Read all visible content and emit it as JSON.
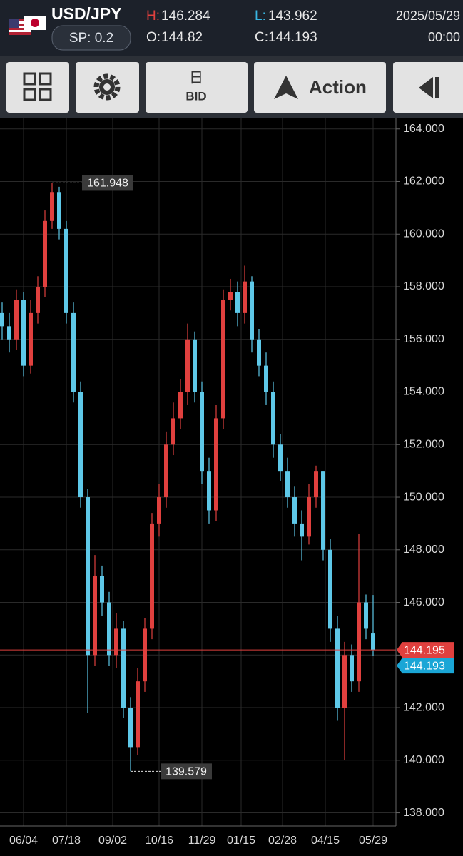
{
  "header": {
    "pair": "USD/JPY",
    "spread": "SP: 0.2",
    "high_key": "H:",
    "open_key": "O:",
    "low_key": "L:",
    "close_key": "C:",
    "date": "2025/05/29",
    "time": "00:00"
  },
  "toolbar": {
    "period": "日",
    "price_side": "BID",
    "action": "Action"
  },
  "chart_data": {
    "type": "candlestick",
    "open": [
      157.0,
      156.5,
      156.0,
      157.5,
      155.0,
      157.0,
      158.0,
      160.5,
      161.6,
      160.2,
      157.0,
      154.0,
      150.0,
      144.0,
      147.0,
      146.0,
      144.0,
      145.0,
      142.0,
      140.5,
      143.0,
      145.0,
      149.0,
      150.0,
      152.0,
      153.0,
      154.0,
      156.0,
      154.0,
      151.0,
      149.5,
      153.0,
      157.5,
      157.8,
      157.0,
      158.2,
      156.0,
      155.0,
      154.0,
      152.0,
      151.0,
      150.0,
      149.0,
      148.5,
      150.0,
      151.0,
      148.0,
      145.0,
      142.0,
      144.0,
      143.0,
      146.0,
      144.82
    ],
    "high": [
      157.4,
      157.0,
      157.9,
      157.8,
      157.5,
      158.4,
      160.9,
      161.948,
      161.8,
      160.5,
      157.4,
      154.4,
      150.3,
      147.8,
      147.4,
      146.4,
      145.6,
      145.3,
      142.4,
      143.5,
      145.4,
      149.4,
      150.5,
      152.5,
      153.6,
      154.5,
      156.6,
      156.3,
      154.4,
      151.5,
      153.5,
      157.9,
      158.3,
      158.2,
      158.8,
      158.4,
      156.4,
      155.5,
      154.4,
      152.4,
      151.5,
      150.4,
      149.5,
      150.5,
      151.2,
      151.0,
      148.4,
      145.5,
      144.5,
      144.4,
      148.6,
      146.3,
      146.284
    ],
    "low": [
      156.0,
      155.5,
      155.6,
      154.6,
      154.7,
      156.6,
      157.6,
      160.2,
      159.8,
      156.6,
      153.6,
      149.6,
      141.8,
      143.6,
      145.5,
      143.6,
      143.5,
      141.6,
      139.579,
      140.2,
      142.6,
      144.6,
      148.5,
      149.6,
      151.6,
      152.6,
      153.5,
      153.6,
      150.5,
      149.0,
      149.1,
      152.6,
      157.1,
      156.5,
      156.6,
      155.5,
      154.6,
      153.5,
      151.5,
      150.6,
      149.6,
      148.5,
      147.6,
      148.2,
      149.6,
      147.6,
      144.5,
      141.5,
      140.0,
      142.6,
      142.6,
      144.6,
      143.962
    ],
    "close": [
      156.5,
      156.0,
      157.5,
      155.0,
      157.0,
      158.0,
      160.5,
      161.6,
      160.2,
      157.0,
      154.0,
      150.0,
      144.0,
      147.0,
      146.0,
      144.0,
      145.0,
      142.0,
      140.5,
      143.0,
      145.0,
      149.0,
      150.0,
      152.0,
      153.0,
      154.0,
      156.0,
      154.0,
      151.0,
      149.5,
      153.0,
      157.5,
      157.8,
      157.0,
      158.2,
      156.0,
      155.0,
      154.0,
      152.0,
      151.0,
      150.0,
      149.0,
      148.5,
      150.0,
      151.0,
      148.0,
      145.0,
      142.0,
      144.0,
      143.0,
      146.0,
      145.0,
      144.193
    ],
    "up_color": "#e0403e",
    "down_color": "#5ec8e8",
    "ask": 144.195,
    "ask_color": "#e0403e",
    "bid_color": "#1aa6d6",
    "high_mark_index": 7,
    "low_mark_index": 18,
    "ylim": [
      137.5,
      164.4
    ],
    "yticks": [
      {
        "value": 138,
        "label": "138.000"
      },
      {
        "value": 140,
        "label": "140.000"
      },
      {
        "value": 142,
        "label": "142.000"
      },
      {
        "value": 144,
        "label": "144.000"
      },
      {
        "value": 146,
        "label": "146.000"
      },
      {
        "value": 148,
        "label": "148.000"
      },
      {
        "value": 150,
        "label": "150.000"
      },
      {
        "value": 152,
        "label": "152.000"
      },
      {
        "value": 154,
        "label": "154.000"
      },
      {
        "value": 156,
        "label": "156.000"
      },
      {
        "value": 158,
        "label": "158.000"
      },
      {
        "value": 160,
        "label": "160.000"
      },
      {
        "value": 162,
        "label": "162.000"
      },
      {
        "value": 164,
        "label": "164.000"
      }
    ],
    "xticks": [
      {
        "value": 3,
        "label": "06/04"
      },
      {
        "value": 9,
        "label": "07/18"
      },
      {
        "value": 15.5,
        "label": "09/02"
      },
      {
        "value": 22,
        "label": "10/16"
      },
      {
        "value": 28,
        "label": "11/29"
      },
      {
        "value": 33.5,
        "label": "01/15"
      },
      {
        "value": 39.3,
        "label": "02/28"
      },
      {
        "value": 45.3,
        "label": "04/15"
      },
      {
        "value": 52,
        "label": "05/29"
      }
    ],
    "grid": true
  }
}
